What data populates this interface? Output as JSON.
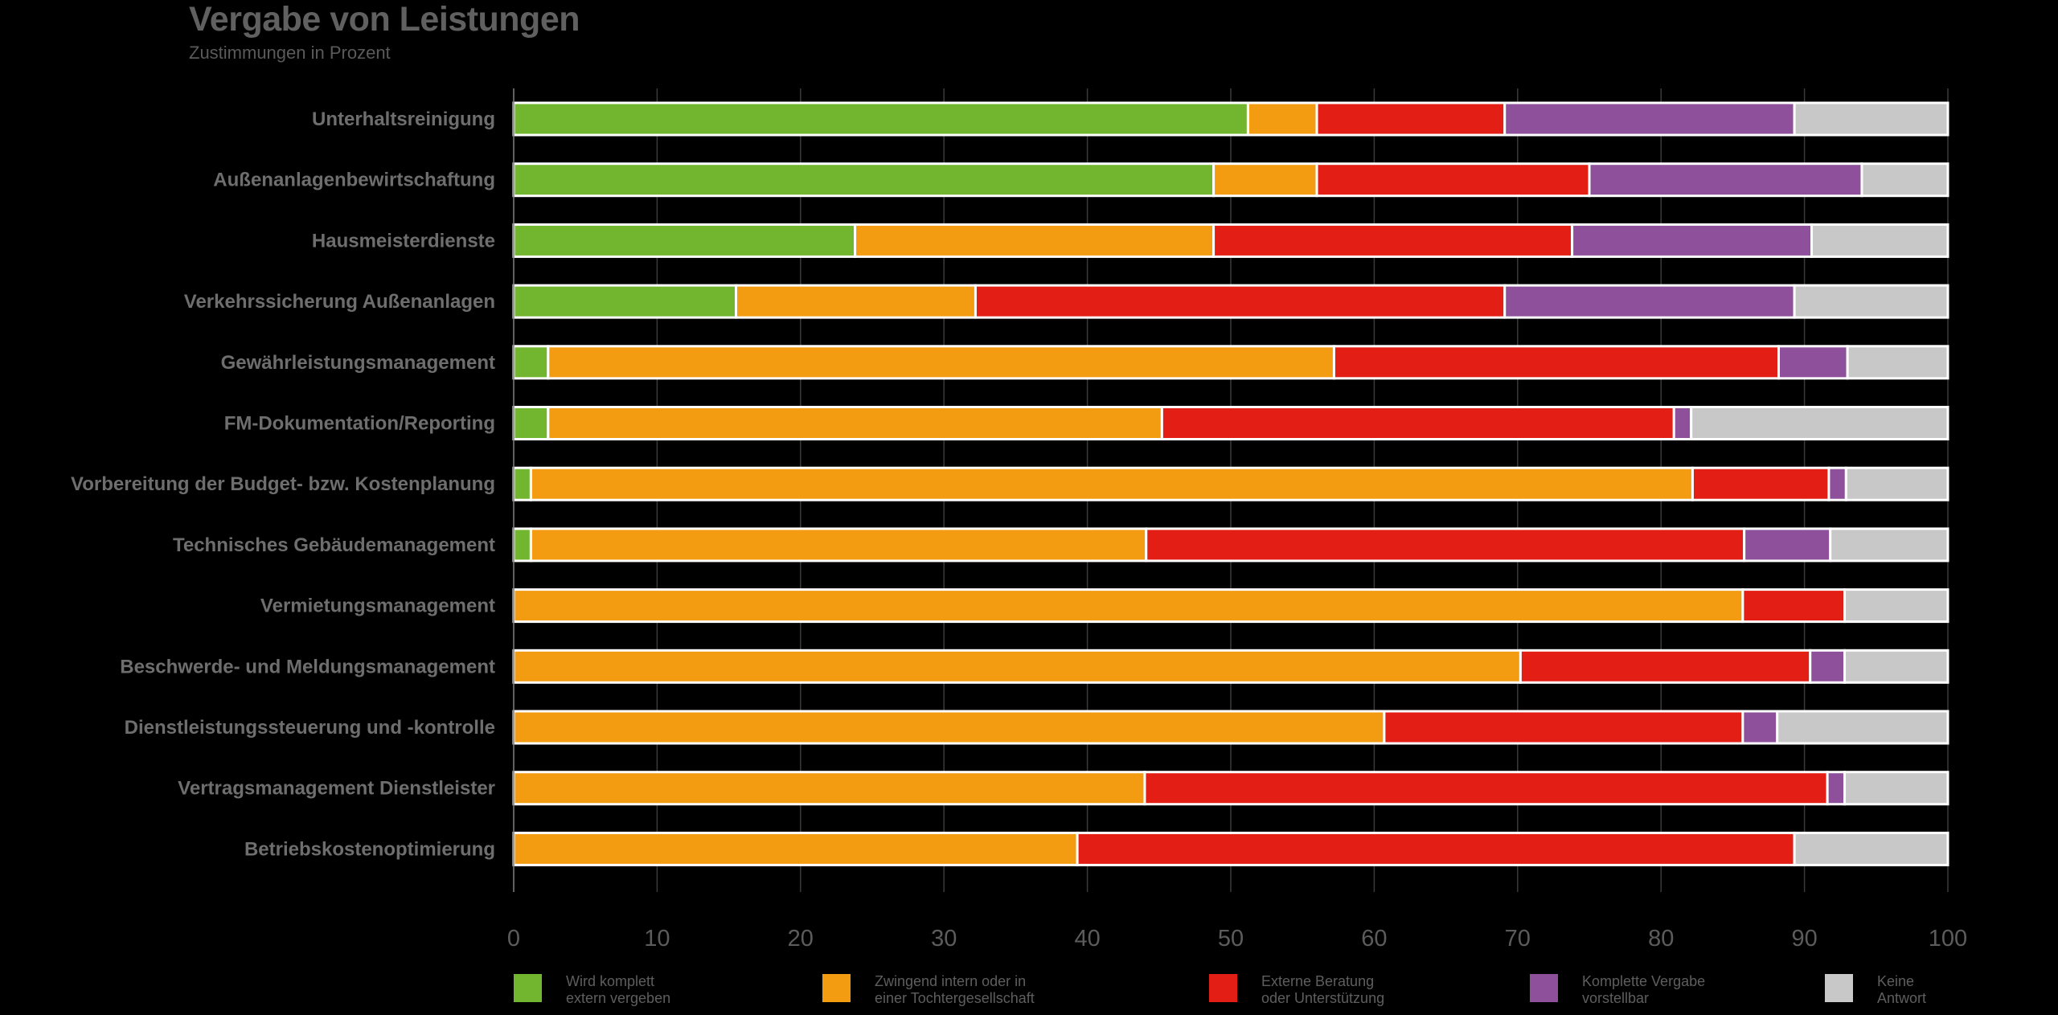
{
  "chart_data": {
    "type": "bar",
    "orientation": "horizontal",
    "stacked": true,
    "title": "Vergabe von Leistungen",
    "subtitle": "Zustimmungen in Prozent",
    "xlim": [
      0,
      100
    ],
    "xticks": [
      "0",
      "10",
      "20",
      "30",
      "40",
      "50",
      "60",
      "70",
      "80",
      "90",
      "100"
    ],
    "grid": true,
    "legend_position": "bottom",
    "categories": [
      "Unterhaltsreinigung",
      "Außenanlagenbewirtschaftung",
      "Hausmeisterdienste",
      "Verkehrssicherung Außenanlagen",
      "Gewährleistungsmanagement",
      "FM-Dokumentation/Reporting",
      "Vorbereitung der Budget- bzw. Kostenplanung",
      "Technisches Gebäudemanagement",
      "Vermietungsmanagement",
      "Beschwerde- und Meldungsmanagement",
      "Dienstleistungssteuerung und -kontrolle",
      "Vertragsmanagement Dienstleister",
      "Betriebskostenoptimierung"
    ],
    "series": [
      {
        "name": [
          "Wird komplett",
          "extern vergeben"
        ],
        "color": "#72b52f",
        "values": [
          51.2,
          48.8,
          23.8,
          15.5,
          2.4,
          2.4,
          1.2,
          1.2,
          0,
          0,
          0,
          0,
          0
        ]
      },
      {
        "name": [
          "Zwingend intern oder in",
          "einer Tochtergesellschaft"
        ],
        "color": "#f39c12",
        "values": [
          4.8,
          7.2,
          25.0,
          16.7,
          54.8,
          42.8,
          81.0,
          42.9,
          85.7,
          70.2,
          60.7,
          44.0,
          39.3
        ]
      },
      {
        "name": [
          "Externe Beratung",
          "oder Unterstützung"
        ],
        "color": "#e31e14",
        "values": [
          13.1,
          19.0,
          25.0,
          36.9,
          31.0,
          35.7,
          9.5,
          41.7,
          7.1,
          20.2,
          25.0,
          47.6,
          50.0
        ]
      },
      {
        "name": [
          "Komplette Vergabe",
          "vorstellbar"
        ],
        "color": "#8e4f9b",
        "values": [
          20.2,
          19.0,
          16.7,
          20.2,
          4.8,
          1.2,
          1.2,
          6.0,
          0,
          2.4,
          2.4,
          1.2,
          0
        ]
      },
      {
        "name": [
          "Keine",
          "Antwort"
        ],
        "color": "#c8c8c8",
        "values": [
          10.7,
          6.0,
          9.5,
          10.7,
          7.0,
          17.9,
          7.1,
          8.2,
          7.2,
          7.2,
          11.9,
          7.2,
          10.7
        ]
      }
    ]
  }
}
